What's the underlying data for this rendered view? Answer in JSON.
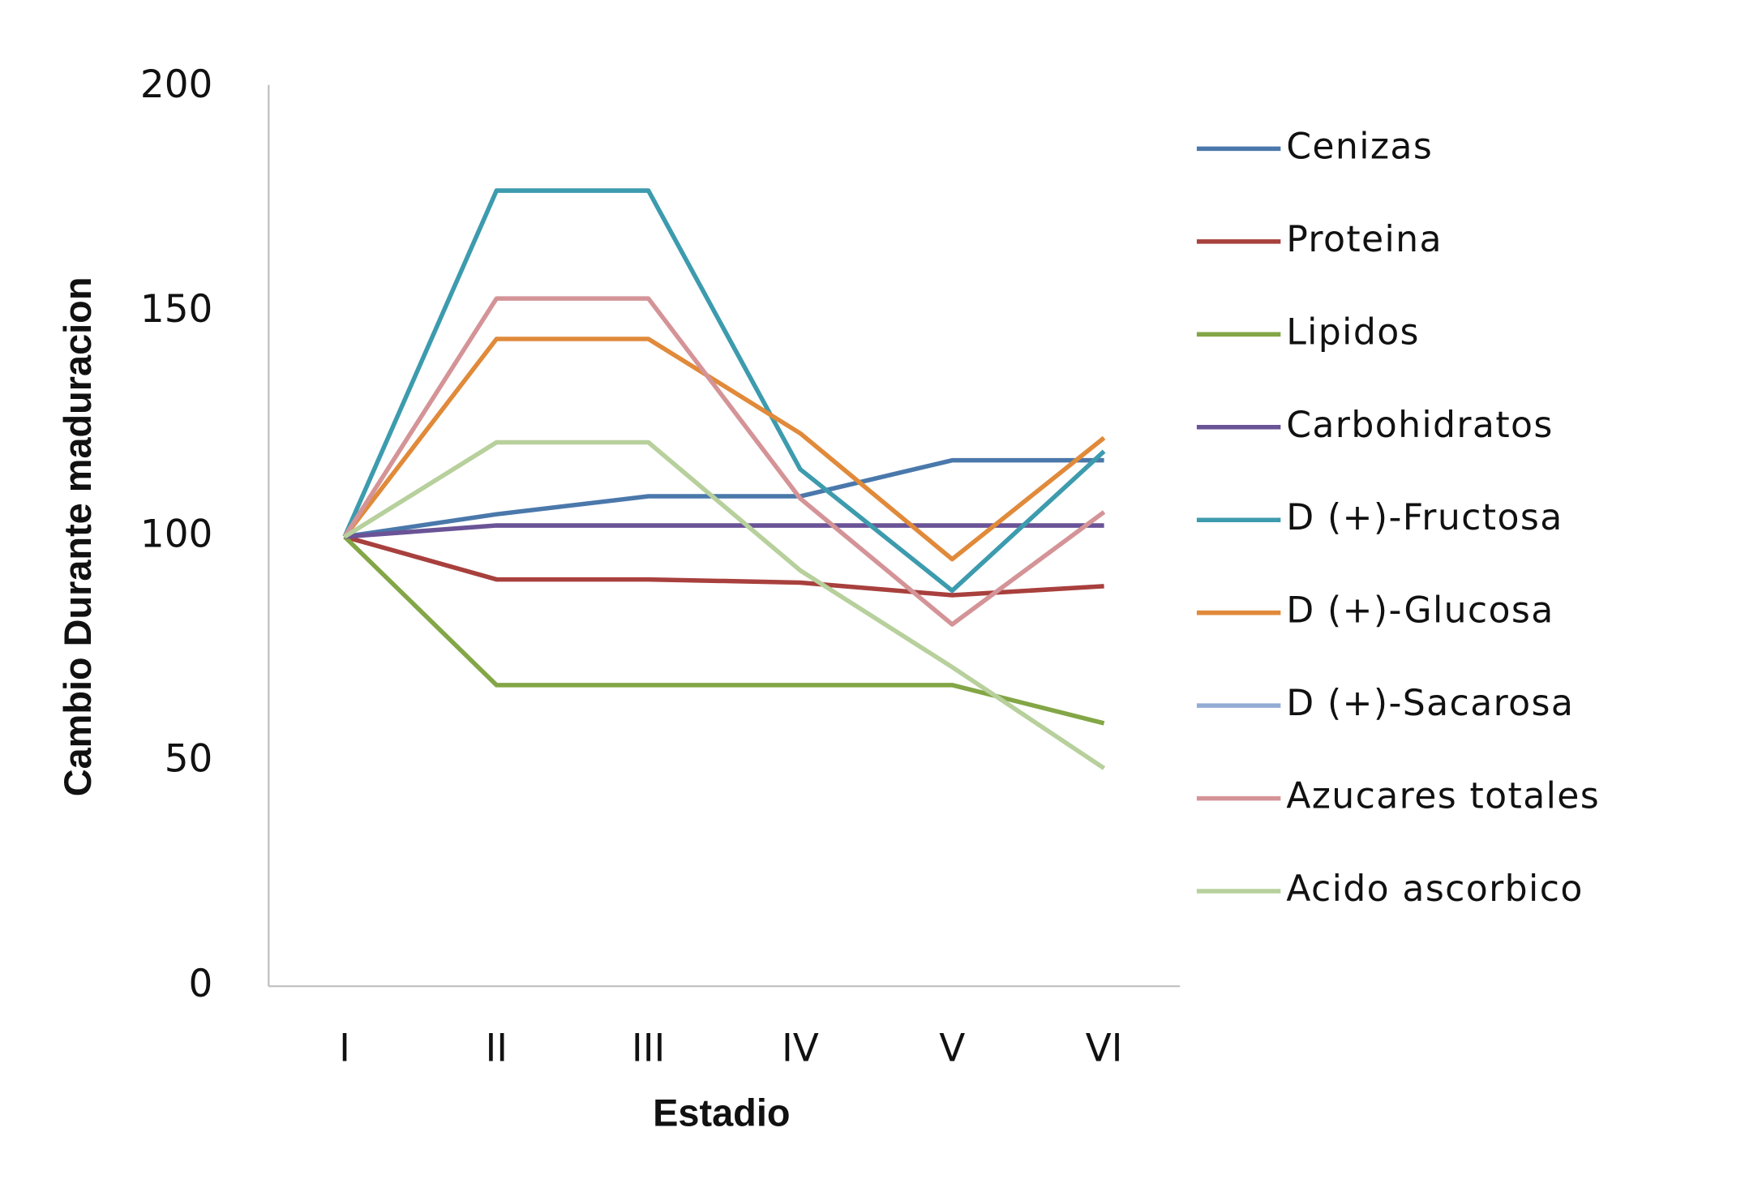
{
  "chart_data": {
    "type": "line",
    "xlabel": "Estadio",
    "ylabel": "Cambio Durante maduracion",
    "categories": [
      "I",
      "II",
      "III",
      "IV",
      "V",
      "VI"
    ],
    "ylim": [
      0,
      200
    ],
    "yticks": [
      0,
      50,
      100,
      150,
      200
    ],
    "grid": false,
    "legend": "right",
    "series": [
      {
        "name": "Cenizas",
        "color": "#4a78ab",
        "values": [
          100,
          105,
          109,
          109,
          117,
          117
        ]
      },
      {
        "name": "Proteina",
        "color": "#a8403d",
        "values": [
          100,
          90.5,
          90.5,
          89.8,
          87,
          89
        ]
      },
      {
        "name": "Lipidos",
        "color": "#83a646",
        "values": [
          100,
          67,
          67,
          67,
          67,
          58.5
        ]
      },
      {
        "name": "Carbohidratos",
        "color": "#6a5396",
        "values": [
          100,
          102.5,
          102.5,
          102.5,
          102.5,
          102.5
        ]
      },
      {
        "name": "D (+)-Fructosa",
        "color": "#3d9bae",
        "values": [
          100,
          177,
          177,
          115,
          88,
          119
        ]
      },
      {
        "name": "D (+)-Glucosa",
        "color": "#e08a3a",
        "values": [
          100,
          144,
          144,
          123,
          95,
          122
        ]
      },
      {
        "name": "D (+)-Sacarosa",
        "color": "#93acd6",
        "values": [
          null,
          null,
          null,
          null,
          null,
          null
        ]
      },
      {
        "name": "Azucares totales",
        "color": "#d49497",
        "values": [
          100,
          153,
          153,
          108.5,
          80.5,
          105.5
        ]
      },
      {
        "name": "Acido ascorbico",
        "color": "#b7d09c",
        "values": [
          100,
          121,
          121,
          92.5,
          71,
          48.5
        ]
      }
    ]
  }
}
